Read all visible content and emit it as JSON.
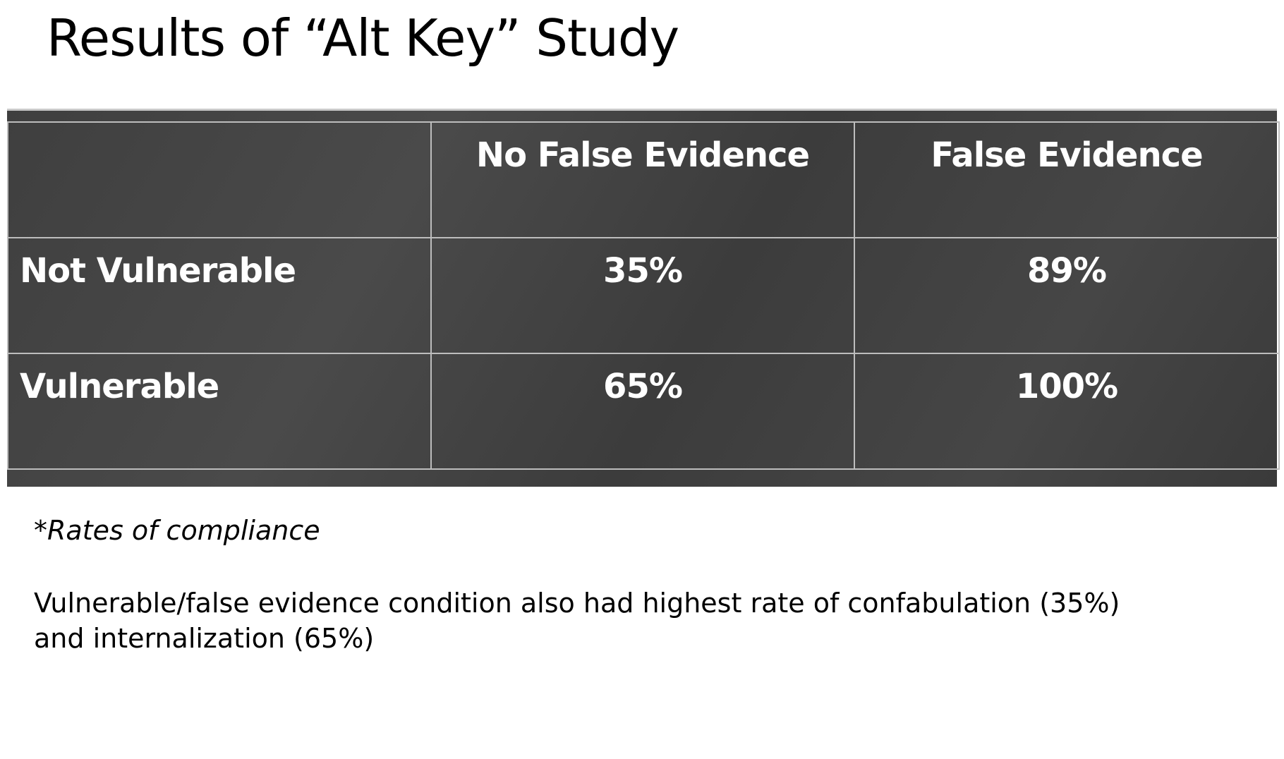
{
  "slide": {
    "title": "Results of “Alt Key” Study"
  },
  "table": {
    "corner": "",
    "columns": [
      "No False Evidence",
      "False Evidence"
    ],
    "rows": [
      {
        "label": "Not Vulnerable",
        "values": [
          "35%",
          "89%"
        ]
      },
      {
        "label": "Vulnerable",
        "values": [
          "65%",
          "100%"
        ]
      }
    ]
  },
  "footnote": "*Rates of compliance",
  "note": {
    "line1": "Vulnerable/false evidence condition also had highest rate of confabulation (35%)",
    "line2": "and internalization (65%)"
  },
  "colors": {
    "table_background": "#404040",
    "table_grid": "#bdbdbd",
    "table_text": "#ffffff",
    "page_background": "#ffffff",
    "text": "#000000"
  }
}
